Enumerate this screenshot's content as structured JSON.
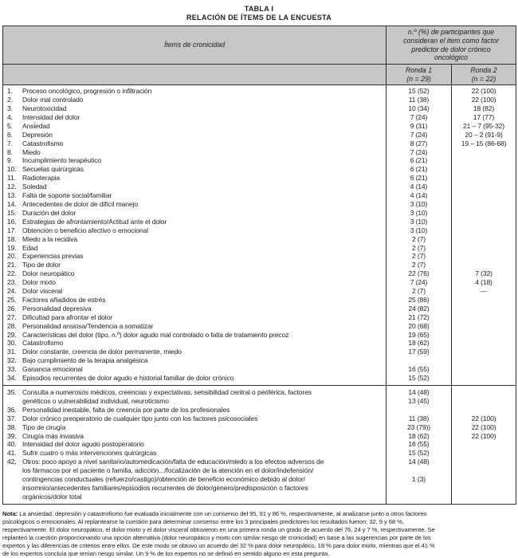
{
  "title": {
    "line1": "TABLA I",
    "line2": "RELACIÓN DE ÍTEMS DE LA ENCUESTA"
  },
  "table": {
    "headers": {
      "items_col": "Ítems de cronicidad",
      "participants_col": "n.º (%) de participantes que\nconsideran el item como factor\npredictor de dolor crónico\noncológico",
      "round1": "Ronda 1\n(n = 29)",
      "round2": "Ronda 2\n(n = 22)"
    },
    "sections": [
      {
        "rows": [
          {
            "num": "1.",
            "text": "Proceso oncológico, progresión o infiltración",
            "r1": "15 (52)",
            "r2": "22 (100)"
          },
          {
            "num": "2.",
            "text": "Dolor mal controlado",
            "r1": "11 (38)",
            "r2": "22 (100)"
          },
          {
            "num": "3.",
            "text": "Neurotoxicidad",
            "r1": "10 (34)",
            "r2": "18 (82)"
          },
          {
            "num": "4.",
            "text": "Intensidad del dolor",
            "r1": "7 (24)",
            "r2": "17 (77)"
          },
          {
            "num": "5.",
            "text": "Ansiedad",
            "r1": "9 (31)",
            "r2": "21 – 7 (95-32)"
          },
          {
            "num": "6.",
            "text": "Depresión",
            "r1": "7 (24)",
            "r2": "20 – 2 (91-9)"
          },
          {
            "num": "7.",
            "text": "Catastrofismo",
            "r1": "8 (27)",
            "r2": "19 – 15 (86-68)"
          },
          {
            "num": "8.",
            "text": "Miedo",
            "r1": "7 (24)",
            "r2": ""
          },
          {
            "num": "9.",
            "text": "Incumplimiento terapéutico",
            "r1": "6 (21)",
            "r2": ""
          },
          {
            "num": "10.",
            "text": "Secuelas quirúrgicas",
            "r1": "6 (21)",
            "r2": ""
          },
          {
            "num": "11.",
            "text": "Radioterapia",
            "r1": "6 (21)",
            "r2": ""
          },
          {
            "num": "12.",
            "text": "Soledad",
            "r1": "4 (14)",
            "r2": ""
          },
          {
            "num": "13.",
            "text": "Falta de soporte social/familiar",
            "r1": "4 (14)",
            "r2": ""
          },
          {
            "num": "14.",
            "text": "Antecedentes de dolor de difícil manejo",
            "r1": "3 (10)",
            "r2": ""
          },
          {
            "num": "15.",
            "text": "Duración del dolor",
            "r1": "3 (10)",
            "r2": ""
          },
          {
            "num": "16.",
            "text": "Estrategias de afrontamiento/Actitud ante el dolor",
            "r1": "3 (10)",
            "r2": ""
          },
          {
            "num": "17.",
            "text": "Obtención o beneficio afectivo o emocional",
            "r1": "3 (10)",
            "r2": ""
          },
          {
            "num": "18.",
            "text": "Miedo a la recidiva",
            "r1": "2 (7)",
            "r2": ""
          },
          {
            "num": "19.",
            "text": "Edad",
            "r1": "2 (7)",
            "r2": ""
          },
          {
            "num": "20.",
            "text": "Experiencias previas",
            "r1": "2 (7)",
            "r2": ""
          },
          {
            "num": "21.",
            "text": "Tipo de dolor",
            "r1": "2 (7)",
            "r2": ""
          },
          {
            "num": "22.",
            "text": "Dolor neuropático",
            "r1": "22 (76)",
            "r2": "7 (32)"
          },
          {
            "num": "23.",
            "text": "Dolor mixto",
            "r1": "7 (24)",
            "r2": "4 (18)"
          },
          {
            "num": "24.",
            "text": "Dolor visceral",
            "r1": "2 (7)",
            "r2": "—"
          },
          {
            "num": "25.",
            "text": "Factores añadidos de estrés",
            "r1": "25 (86)",
            "r2": ""
          },
          {
            "num": "26.",
            "text": "Personalidad depresiva",
            "r1": "24 (82)",
            "r2": ""
          },
          {
            "num": "27.",
            "text": "Dificultad para afrontar el dolor",
            "r1": "21 (72)",
            "r2": ""
          },
          {
            "num": "28.",
            "text": "Personalidad ansiosa/Tendencia a somatizar",
            "r1": "20 (68)",
            "r2": ""
          },
          {
            "num": "29.",
            "text": "Características del dolor (tipo, n.º) dolor agudo mal controlado o falta de tratamiento precoz",
            "r1": "19 (65)",
            "r2": ""
          },
          {
            "num": "30.",
            "text": "Catastrofismo",
            "r1": "18 (62)",
            "r2": ""
          },
          {
            "num": "31.",
            "text": "Dolor constante, creencia de dolor permanente, miedo",
            "r1": "17 (59)",
            "r2": ""
          },
          {
            "num": "32.",
            "text": "Bajo cumplimiento de la terapia analgésica",
            "r1": "",
            "r2": ""
          },
          {
            "num": "33.",
            "text": "Ganancia emocional",
            "r1": "16 (55)",
            "r2": ""
          },
          {
            "num": "34.",
            "text": "Episodios recurrentes de dolor agudo e historial familiar de dolor crónico",
            "r1": "15 (52)",
            "r2": ""
          }
        ]
      },
      {
        "rows": [
          {
            "num": "35.",
            "text": "Consulta a numerosos médicos, creencias y expectativas, sensibilidad central o periférica, factores\ngenéticos o vulnerabilidad individual, neuroticismo",
            "r1": "14 (48)\n13 (45)",
            "r2": ""
          },
          {
            "num": "36.",
            "text": "Personalidad inestable, falta de creencia por parte de los profesionales",
            "r1": "",
            "r2": ""
          },
          {
            "num": "37.",
            "text": "Dolor crónico preoperatorio de cualquier tipo junto con los factores psicosociales",
            "r1": "11 (38)",
            "r2": "22 (100)"
          },
          {
            "num": "38.",
            "text": "Tipo de cirugía",
            "r1": "23 (79))",
            "r2": "22 (100)"
          },
          {
            "num": "39.",
            "text": "Cirugía más invasiva",
            "r1": "18 (62)",
            "r2": "22 (100)"
          },
          {
            "num": "40.",
            "text": "Intensidad del dolor agudo postoperatorio",
            "r1": "16 (55)",
            "r2": ""
          },
          {
            "num": "41.",
            "text": "Sufrir cuatro o más intervenciones quirúrgicas",
            "r1": "15 (52)",
            "r2": ""
          },
          {
            "num": "42.",
            "text": "Otros: poco apoyo a nivel sanitario/automedicación/falta de educación/miedo a los efectos adversos de\nlos fármacos por el paciente o familia, adicción.../focalización de la atención en el dolor/indefensión/\ncontingencias conductuales (refuerzo/castigo)/obtención de beneficio económico debido al dolor/\ninsomnio/antecedentes familiares/episodios recurrentes de dolor/género/predisposición o factores\norgánicos/dolor total",
            "r1": "14 (48)\n\n1 (3)",
            "r2": ""
          }
        ]
      }
    ]
  },
  "note": {
    "label": "Nota:",
    "text": " La ansiedad, depresión y catastrofismo fue evaluada inicialmente con un consenso del 95, 91 y 86 %, respectivamente, al analizarse junto a otros factores\npsicológicos o emocionales. Al replantearse la cuestión para determinar consenso entre los 3 principales predictores los resultados fueron: 32, 9 y 68 %,\nrespectivamente. El dolor neuropático, el dolor mixto y el dolor visceral obtuvieron en una primera ronda un grado de acuerdo del 76, 24 y 7 %, respectivamente. Se\nreplanteó la cuestión proporcionando una opción alternativa (dolor neuropático y mixto con similar riesgo de cronicidad) en base a las sugerencias por parte de los\nexpertos y las diferencias de criterios entre ellos. De este modo se obtuvo un acuerdo del 32 % para dolor neuropático, 18 % para dolor mixto, mientras que el 41 %\nde los expertos concluía que tenían riesgo similar. Un 9 % de los expertos no se definió en sentido alguno en esta pregunta."
  },
  "colors": {
    "header_bg": "#c7c7c7",
    "border": "#2e2e2e",
    "text": "#1c1c1c"
  }
}
